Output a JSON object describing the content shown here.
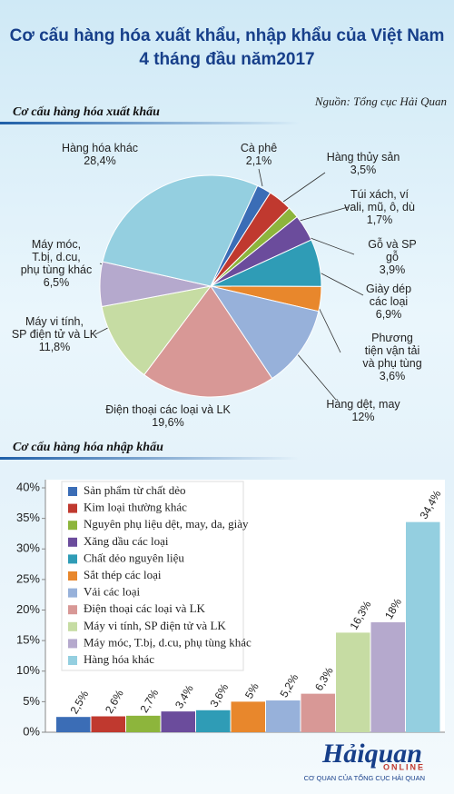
{
  "title": [
    "Cơ cấu hàng hóa xuất khẩu, nhập khẩu của Việt Nam",
    "4 tháng đầu năm2017"
  ],
  "source": "Nguồn: Tổng cục Hải Quan",
  "chart_data": [
    {
      "type": "pie",
      "title": "Cơ cấu hàng hóa xuất khẩu",
      "categories": [
        "Cà phê",
        "Hàng thủy sản",
        "Túi xách, ví\nvali, mũ, ô, dù",
        "Gỗ và SP gỗ",
        "Giày dép\ncác loại",
        "Phương tiện vận tải\nvà phụ tùng",
        "Hàng dệt, may",
        "Điện thoại các loại và LK",
        "Máy vi tính,\nSP điện tử và LK",
        "Máy móc,\nT.bị, d.cu,\nphụ tùng khác",
        "Hàng hóa khác"
      ],
      "values": [
        2.1,
        3.5,
        1.7,
        3.9,
        6.9,
        3.6,
        12,
        19.6,
        11.8,
        6.5,
        28.4
      ],
      "value_labels": [
        "2,1%",
        "3,5%",
        "1,7%",
        "3,9%",
        "6,9%",
        "3,6%",
        "12%",
        "19,6%",
        "11,8%",
        "6,5%",
        "28,4%"
      ],
      "colors": [
        "#3b6db6",
        "#c0392f",
        "#8db53c",
        "#6b4c9c",
        "#2f9cb6",
        "#e8872c",
        "#97b1da",
        "#d89896",
        "#c6dca3",
        "#b5a9cd",
        "#94cfe0"
      ]
    },
    {
      "type": "bar",
      "title": "Cơ cấu hàng hóa nhập khẩu",
      "categories": [
        "Sản phẩm từ chất dẻo",
        "Kim loại thường khác",
        "Nguyên phụ liệu dệt, may, da, giày",
        "Xăng dầu các loại",
        "Chất dẻo nguyên liệu",
        "Sắt thép các loại",
        "Vải các loại",
        "Điện thoại các loại và LK",
        "Máy vi tính, SP điện tử và LK",
        "Máy móc, T.bị, d.cu, phụ tùng khác",
        "Hàng hóa khác"
      ],
      "values": [
        2.5,
        2.6,
        2.7,
        3.4,
        3.6,
        5,
        5.2,
        6.3,
        16.3,
        18,
        34.4
      ],
      "value_labels": [
        "2,5%",
        "2,6%",
        "2,7%",
        "3,4%",
        "3,6%",
        "5%",
        "5,2%",
        "6,3%",
        "16,3%",
        "18%",
        "34,4%"
      ],
      "colors": [
        "#3b6db6",
        "#c0392f",
        "#8db53c",
        "#6b4c9c",
        "#2f9cb6",
        "#e8872c",
        "#97b1da",
        "#d89896",
        "#c6dca3",
        "#b5a9cd",
        "#94cfe0"
      ],
      "ylim": [
        0,
        40
      ],
      "yticks": [
        {
          "value": 0,
          "label": "0%"
        },
        {
          "value": 5,
          "label": "5%"
        },
        {
          "value": 10,
          "label": "10%"
        },
        {
          "value": 15,
          "label": "15%"
        },
        {
          "value": 20,
          "label": "20%"
        },
        {
          "value": 25,
          "label": "25%"
        },
        {
          "value": 30,
          "label": "30%"
        },
        {
          "value": 35,
          "label": "35%"
        },
        {
          "value": 40,
          "label": "40%"
        }
      ],
      "grid": false
    }
  ],
  "logo": {
    "name": "Hảiquan",
    "tag": "ONLINE",
    "subtitle": "CƠ QUAN CỦA TỔNG CỤC HẢI QUAN"
  }
}
